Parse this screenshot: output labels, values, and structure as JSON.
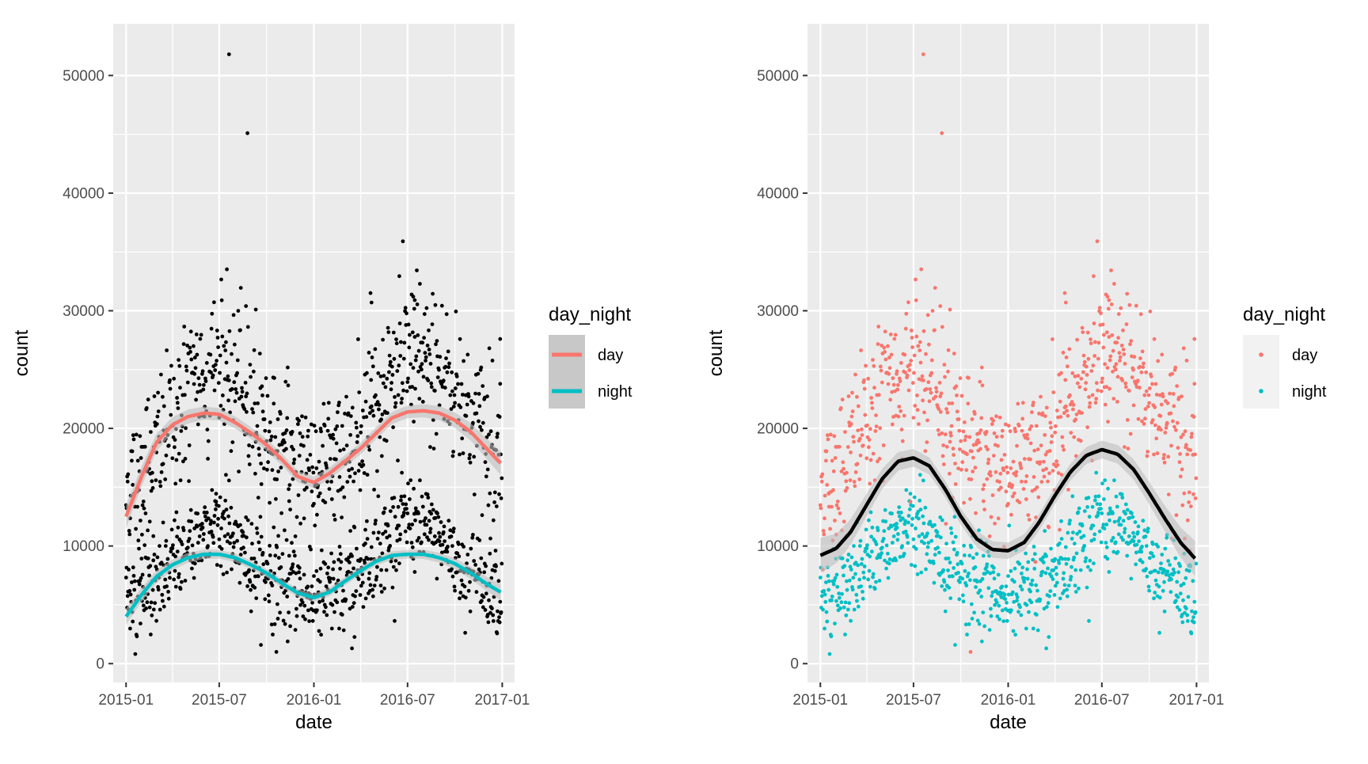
{
  "colors": {
    "day": "#F8766D",
    "night": "#00BFC4",
    "panel": "#EBEBEB",
    "grid": "#FFFFFF",
    "smooth_band": "#BEBEBE"
  },
  "chart_data": [
    {
      "type": "scatter",
      "panel": "left",
      "xlabel": "date",
      "ylabel": "count",
      "x_ticks": [
        "2015-01",
        "2015-07",
        "2016-01",
        "2016-07",
        "2017-01"
      ],
      "y_ticks": [
        "0",
        "10000",
        "20000",
        "30000",
        "40000",
        "50000"
      ],
      "xlim": [
        "2014-12-07",
        "2017-01-25"
      ],
      "ylim": [
        -1600,
        54400
      ],
      "grid": true,
      "points_color": "black",
      "legend": {
        "title": "day_night",
        "position": "right",
        "entries": [
          "day",
          "night"
        ],
        "key_style": "line"
      },
      "series": [
        {
          "name": "day",
          "trend": [
            [
              "2015-01-01",
              12500
            ],
            [
              "2015-02-01",
              16000
            ],
            [
              "2015-03-01",
              18800
            ],
            [
              "2015-04-01",
              20300
            ],
            [
              "2015-05-01",
              21000
            ],
            [
              "2015-06-01",
              21300
            ],
            [
              "2015-07-01",
              21200
            ],
            [
              "2015-08-01",
              20500
            ],
            [
              "2015-09-01",
              19600
            ],
            [
              "2015-10-01",
              18600
            ],
            [
              "2015-11-01",
              17300
            ],
            [
              "2015-12-01",
              15900
            ],
            [
              "2016-01-01",
              15400
            ],
            [
              "2016-02-01",
              16200
            ],
            [
              "2016-03-01",
              17200
            ],
            [
              "2016-04-01",
              18300
            ],
            [
              "2016-05-01",
              19600
            ],
            [
              "2016-06-01",
              20900
            ],
            [
              "2016-07-01",
              21400
            ],
            [
              "2016-08-01",
              21500
            ],
            [
              "2016-09-01",
              21300
            ],
            [
              "2016-10-01",
              20700
            ],
            [
              "2016-11-01",
              19700
            ],
            [
              "2016-12-01",
              18300
            ],
            [
              "2017-01-01",
              16900
            ]
          ]
        },
        {
          "name": "night",
          "trend": [
            [
              "2015-01-01",
              4000
            ],
            [
              "2015-02-01",
              5900
            ],
            [
              "2015-03-01",
              7400
            ],
            [
              "2015-04-01",
              8400
            ],
            [
              "2015-05-01",
              9000
            ],
            [
              "2015-06-01",
              9300
            ],
            [
              "2015-07-01",
              9300
            ],
            [
              "2015-08-01",
              9000
            ],
            [
              "2015-09-01",
              8400
            ],
            [
              "2015-10-01",
              7700
            ],
            [
              "2015-11-01",
              6800
            ],
            [
              "2015-12-01",
              6000
            ],
            [
              "2016-01-01",
              5600
            ],
            [
              "2016-02-01",
              6100
            ],
            [
              "2016-03-01",
              7000
            ],
            [
              "2016-04-01",
              7900
            ],
            [
              "2016-05-01",
              8700
            ],
            [
              "2016-06-01",
              9200
            ],
            [
              "2016-07-01",
              9300
            ],
            [
              "2016-08-01",
              9300
            ],
            [
              "2016-09-01",
              9000
            ],
            [
              "2016-10-01",
              8500
            ],
            [
              "2016-11-01",
              7700
            ],
            [
              "2016-12-01",
              6800
            ],
            [
              "2017-01-01",
              6000
            ]
          ]
        }
      ],
      "scatter_pattern": {
        "day_seasonal": [
          [
            "2015-01-01",
            14500
          ],
          [
            "2015-03-01",
            18000
          ],
          [
            "2015-05-01",
            23000
          ],
          [
            "2015-07-01",
            25500
          ],
          [
            "2015-09-01",
            21500
          ],
          [
            "2015-11-01",
            18000
          ],
          [
            "2016-01-01",
            16500
          ],
          [
            "2016-03-01",
            17500
          ],
          [
            "2016-05-01",
            22500
          ],
          [
            "2016-07-01",
            26000
          ],
          [
            "2016-09-01",
            25000
          ],
          [
            "2016-11-01",
            21000
          ],
          [
            "2017-01-01",
            17500
          ]
        ],
        "night_seasonal": [
          [
            "2015-01-01",
            5500
          ],
          [
            "2015-03-01",
            6500
          ],
          [
            "2015-05-01",
            10000
          ],
          [
            "2015-07-01",
            12500
          ],
          [
            "2015-09-01",
            8500
          ],
          [
            "2015-11-01",
            7000
          ],
          [
            "2016-01-01",
            5500
          ],
          [
            "2016-03-01",
            6000
          ],
          [
            "2016-05-01",
            9500
          ],
          [
            "2016-07-01",
            12500
          ],
          [
            "2016-09-01",
            10500
          ],
          [
            "2016-11-01",
            7500
          ],
          [
            "2017-01-01",
            6000
          ]
        ],
        "outliers": [
          [
            "2015-07-20",
            51800
          ],
          [
            "2015-08-25",
            45100
          ],
          [
            "2016-04-20",
            31500
          ],
          [
            "2016-04-22",
            30700
          ],
          [
            "2016-07-12",
            31200
          ],
          [
            "2016-07-15",
            30900
          ],
          [
            "2015-08-22",
            30400
          ],
          [
            "2015-09-10",
            30100
          ],
          [
            "2016-12-28",
            27600
          ],
          [
            "2015-10-20",
            1000
          ],
          [
            "2016-03-15",
            1300
          ]
        ]
      }
    },
    {
      "type": "scatter",
      "panel": "right",
      "xlabel": "date",
      "ylabel": "count",
      "x_ticks": [
        "2015-01",
        "2015-07",
        "2016-01",
        "2016-07",
        "2017-01"
      ],
      "y_ticks": [
        "0",
        "10000",
        "20000",
        "30000",
        "40000",
        "50000"
      ],
      "xlim": [
        "2014-12-07",
        "2017-01-25"
      ],
      "ylim": [
        -1600,
        54400
      ],
      "grid": true,
      "legend": {
        "title": "day_night",
        "position": "right",
        "entries": [
          "day",
          "night"
        ],
        "key_style": "point"
      },
      "overall_trend_color": "black",
      "overall_trend": [
        [
          "2015-01-01",
          9200
        ],
        [
          "2015-02-01",
          9800
        ],
        [
          "2015-03-01",
          11200
        ],
        [
          "2015-04-01",
          13500
        ],
        [
          "2015-05-01",
          15700
        ],
        [
          "2015-06-01",
          17200
        ],
        [
          "2015-07-01",
          17500
        ],
        [
          "2015-08-01",
          16800
        ],
        [
          "2015-09-01",
          14800
        ],
        [
          "2015-10-01",
          12500
        ],
        [
          "2015-11-01",
          10600
        ],
        [
          "2015-12-01",
          9700
        ],
        [
          "2016-01-01",
          9600
        ],
        [
          "2016-02-01",
          10300
        ],
        [
          "2016-03-01",
          12000
        ],
        [
          "2016-04-01",
          14300
        ],
        [
          "2016-05-01",
          16300
        ],
        [
          "2016-06-01",
          17700
        ],
        [
          "2016-07-01",
          18200
        ],
        [
          "2016-08-01",
          17800
        ],
        [
          "2016-09-01",
          16500
        ],
        [
          "2016-10-01",
          14500
        ],
        [
          "2016-11-01",
          12300
        ],
        [
          "2016-12-01",
          10300
        ],
        [
          "2017-01-01",
          8800
        ]
      ]
    }
  ]
}
